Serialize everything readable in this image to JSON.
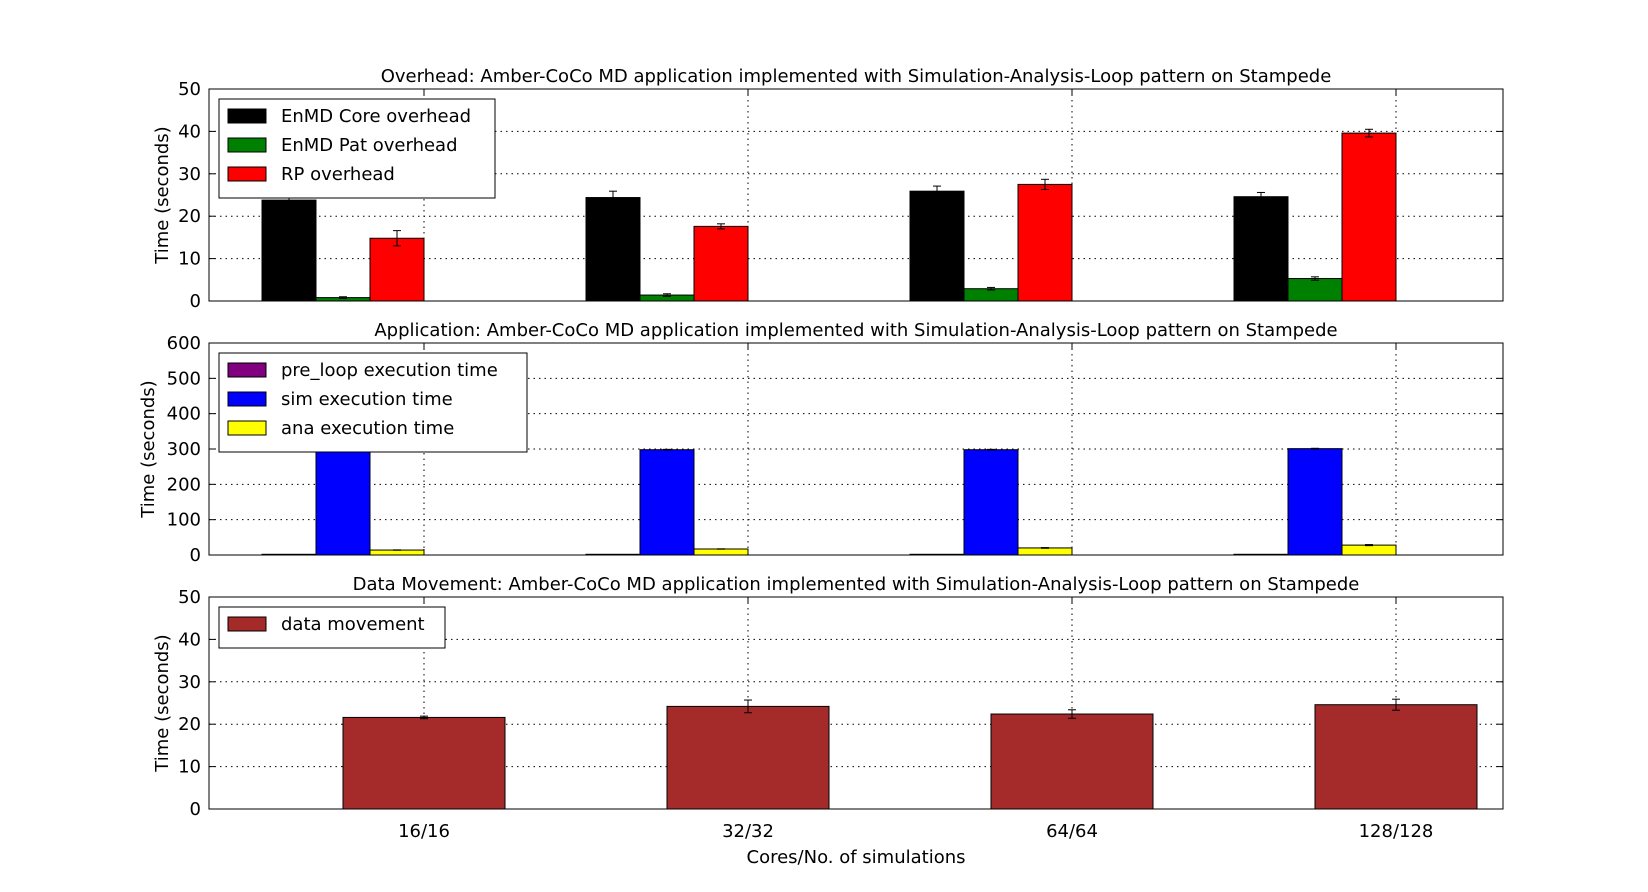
{
  "chart_data": [
    {
      "type": "bar",
      "title": "Overhead: Amber-CoCo MD application implemented with Simulation-Analysis-Loop pattern on Stampede",
      "xlabel": "",
      "ylabel": "Time (seconds)",
      "ylim": [
        0,
        50
      ],
      "yticks": [
        "0",
        "10",
        "20",
        "30",
        "40",
        "50"
      ],
      "grid": true,
      "legend_position": "upper-left",
      "categories": [
        "16/16",
        "32/32",
        "64/64",
        "128/128"
      ],
      "series": [
        {
          "name": "EnMD Core overhead",
          "color": "#000000",
          "values": [
            23.8,
            24.4,
            25.9,
            24.6
          ],
          "errors": [
            0.5,
            1.5,
            1.2,
            1.0
          ]
        },
        {
          "name": "EnMD Pat overhead",
          "color": "#008000",
          "values": [
            0.8,
            1.4,
            2.9,
            5.3
          ],
          "errors": [
            0.2,
            0.3,
            0.3,
            0.4
          ]
        },
        {
          "name": "RP overhead",
          "color": "#ff0000",
          "values": [
            14.8,
            17.6,
            27.5,
            39.6
          ],
          "errors": [
            1.8,
            0.6,
            1.2,
            0.9
          ]
        }
      ]
    },
    {
      "type": "bar",
      "title": "Application: Amber-CoCo MD application implemented with Simulation-Analysis-Loop pattern on Stampede",
      "xlabel": "",
      "ylabel": "Time (seconds)",
      "ylim": [
        0,
        600
      ],
      "yticks": [
        "0",
        "100",
        "200",
        "300",
        "400",
        "500",
        "600"
      ],
      "grid": true,
      "legend_position": "upper-left",
      "categories": [
        "16/16",
        "32/32",
        "64/64",
        "128/128"
      ],
      "series": [
        {
          "name": "pre_loop execution time",
          "color": "#800080",
          "values": [
            2,
            2,
            2,
            2
          ],
          "errors": [
            0,
            0,
            0,
            0
          ]
        },
        {
          "name": "sim execution time",
          "color": "#0000ff",
          "values": [
            295,
            298,
            298,
            301
          ],
          "errors": [
            1,
            1,
            1,
            1
          ]
        },
        {
          "name": "ana execution time",
          "color": "#ffff00",
          "values": [
            14,
            17,
            20,
            28
          ],
          "errors": [
            0.5,
            0.5,
            1,
            1.5
          ]
        }
      ]
    },
    {
      "type": "bar",
      "title": "Data Movement: Amber-CoCo MD application implemented with Simulation-Analysis-Loop pattern on Stampede",
      "xlabel": "Cores/No. of simulations",
      "ylabel": "Time (seconds)",
      "ylim": [
        0,
        50
      ],
      "yticks": [
        "0",
        "10",
        "20",
        "30",
        "40",
        "50"
      ],
      "grid": true,
      "legend_position": "upper-left",
      "categories": [
        "16/16",
        "32/32",
        "64/64",
        "128/128"
      ],
      "series": [
        {
          "name": "data movement",
          "color": "#a52a2a",
          "values": [
            21.6,
            24.2,
            22.4,
            24.6
          ],
          "errors": [
            0.3,
            1.5,
            1.0,
            1.3
          ]
        }
      ]
    }
  ]
}
